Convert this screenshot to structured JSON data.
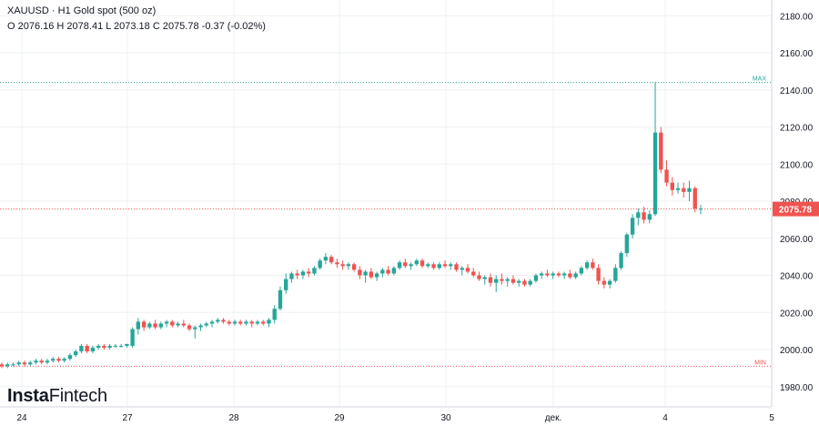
{
  "header": {
    "symbol": "XAUUSD",
    "sep": " · ",
    "timeframe": "H1",
    "description": "Gold spot (500 oz)",
    "ohlc": "O 2076.16 H 2078.41 L 2073.18 C 2075.78  -0.37 (-0.02%)"
  },
  "logo": {
    "part1": "Insta",
    "part2": "Fintech"
  },
  "colors": {
    "up": "#26a69a",
    "down": "#ef5350",
    "max_line": "#26a69a",
    "min_line": "#ef5350",
    "price_line": "#ef5350",
    "grid": "#eef0f3",
    "axis_text": "#131722"
  },
  "chart_data": {
    "type": "candlestick",
    "title": "XAUUSD · H1 Gold spot (500 oz)",
    "ylim": [
      1970,
      2190
    ],
    "y_ticks": [
      1980,
      2000,
      2020,
      2040,
      2060,
      2080,
      2100,
      2120,
      2140,
      2160,
      2180
    ],
    "y_tick_labels": [
      "1980.00",
      "2000.00",
      "2020.00",
      "2040.00",
      "2060.00",
      "2080.00",
      "2100.00",
      "2120.00",
      "2140.00",
      "2160.00",
      "2180.00"
    ],
    "x_ticks": [
      "24",
      "27",
      "28",
      "29",
      "30",
      "дек.",
      "4",
      "5"
    ],
    "grid": true,
    "max_label": "MAX",
    "min_label": "MIN",
    "max_value": 2144,
    "min_value": 1991,
    "last_price": 2075.78,
    "last_price_label": "2075.78",
    "candles": [
      [
        1992,
        1993,
        1990,
        1991
      ],
      [
        1991,
        1993,
        1990,
        1992
      ],
      [
        1992,
        1993,
        1991,
        1992
      ],
      [
        1992,
        1994,
        1991,
        1993
      ],
      [
        1993,
        1994,
        1991,
        1992
      ],
      [
        1992,
        1994,
        1991,
        1993
      ],
      [
        1993,
        1995,
        1992,
        1994
      ],
      [
        1994,
        1995,
        1992,
        1993
      ],
      [
        1993,
        1995,
        1992,
        1994
      ],
      [
        1994,
        1996,
        1993,
        1995
      ],
      [
        1995,
        1996,
        1993,
        1994
      ],
      [
        1994,
        1996,
        1993,
        1995
      ],
      [
        1995,
        1998,
        1994,
        1997
      ],
      [
        1997,
        2000,
        1996,
        1999
      ],
      [
        1999,
        2003,
        1998,
        2002
      ],
      [
        2002,
        2003,
        1998,
        1999
      ],
      [
        1999,
        2002,
        1998,
        2001
      ],
      [
        2001,
        2003,
        2000,
        2002
      ],
      [
        2002,
        2003,
        2000,
        2001
      ],
      [
        2001,
        2003,
        2000,
        2002
      ],
      [
        2002,
        2003,
        2001,
        2002
      ],
      [
        2002,
        2003,
        2001,
        2002
      ],
      [
        2002,
        2003,
        2001,
        2003
      ],
      [
        2002,
        2012,
        2001,
        2011
      ],
      [
        2011,
        2017,
        2008,
        2015
      ],
      [
        2015,
        2016,
        2010,
        2012
      ],
      [
        2012,
        2015,
        2011,
        2014
      ],
      [
        2014,
        2016,
        2011,
        2012
      ],
      [
        2012,
        2015,
        2011,
        2014
      ],
      [
        2014,
        2016,
        2012,
        2015
      ],
      [
        2015,
        2016,
        2012,
        2013
      ],
      [
        2013,
        2015,
        2012,
        2014
      ],
      [
        2014,
        2016,
        2012,
        2013
      ],
      [
        2013,
        2014,
        2010,
        2011
      ],
      [
        2011,
        2013,
        2006,
        2012
      ],
      [
        2012,
        2014,
        2010,
        2013
      ],
      [
        2013,
        2015,
        2012,
        2014
      ],
      [
        2014,
        2016,
        2012,
        2015
      ],
      [
        2015,
        2017,
        2014,
        2016
      ],
      [
        2016,
        2017,
        2014,
        2015
      ],
      [
        2015,
        2016,
        2013,
        2014
      ],
      [
        2014,
        2016,
        2013,
        2015
      ],
      [
        2015,
        2016,
        2013,
        2014
      ],
      [
        2014,
        2016,
        2013,
        2015
      ],
      [
        2015,
        2016,
        2012,
        2014
      ],
      [
        2014,
        2016,
        2013,
        2015
      ],
      [
        2015,
        2016,
        2013,
        2014
      ],
      [
        2014,
        2017,
        2012,
        2016
      ],
      [
        2016,
        2024,
        2014,
        2022
      ],
      [
        2022,
        2034,
        2021,
        2032
      ],
      [
        2032,
        2041,
        2030,
        2038
      ],
      [
        2038,
        2042,
        2036,
        2041
      ],
      [
        2041,
        2043,
        2038,
        2040
      ],
      [
        2040,
        2043,
        2038,
        2042
      ],
      [
        2042,
        2044,
        2039,
        2041
      ],
      [
        2041,
        2045,
        2040,
        2044
      ],
      [
        2044,
        2049,
        2043,
        2048
      ],
      [
        2048,
        2052,
        2046,
        2050
      ],
      [
        2050,
        2051,
        2046,
        2047
      ],
      [
        2047,
        2049,
        2044,
        2046
      ],
      [
        2046,
        2048,
        2043,
        2045
      ],
      [
        2045,
        2047,
        2043,
        2046
      ],
      [
        2046,
        2047,
        2042,
        2043
      ],
      [
        2043,
        2045,
        2038,
        2040
      ],
      [
        2040,
        2043,
        2036,
        2042
      ],
      [
        2042,
        2044,
        2038,
        2039
      ],
      [
        2039,
        2042,
        2037,
        2041
      ],
      [
        2041,
        2044,
        2039,
        2043
      ],
      [
        2043,
        2045,
        2040,
        2041
      ],
      [
        2041,
        2045,
        2040,
        2044
      ],
      [
        2044,
        2048,
        2043,
        2047
      ],
      [
        2047,
        2049,
        2044,
        2045
      ],
      [
        2045,
        2047,
        2043,
        2046
      ],
      [
        2046,
        2049,
        2045,
        2048
      ],
      [
        2048,
        2049,
        2044,
        2045
      ],
      [
        2045,
        2047,
        2044,
        2046
      ],
      [
        2046,
        2047,
        2043,
        2044
      ],
      [
        2044,
        2047,
        2043,
        2046
      ],
      [
        2046,
        2048,
        2044,
        2045
      ],
      [
        2045,
        2047,
        2043,
        2046
      ],
      [
        2046,
        2047,
        2042,
        2043
      ],
      [
        2043,
        2045,
        2040,
        2044
      ],
      [
        2044,
        2046,
        2041,
        2042
      ],
      [
        2042,
        2044,
        2039,
        2040
      ],
      [
        2040,
        2042,
        2037,
        2038
      ],
      [
        2038,
        2040,
        2035,
        2039
      ],
      [
        2039,
        2041,
        2034,
        2036
      ],
      [
        2036,
        2040,
        2031,
        2038
      ],
      [
        2038,
        2041,
        2035,
        2037
      ],
      [
        2037,
        2039,
        2034,
        2038
      ],
      [
        2038,
        2040,
        2035,
        2036
      ],
      [
        2036,
        2038,
        2034,
        2037
      ],
      [
        2037,
        2038,
        2034,
        2035
      ],
      [
        2035,
        2038,
        2034,
        2037
      ],
      [
        2037,
        2041,
        2036,
        2040
      ],
      [
        2040,
        2042,
        2038,
        2041
      ],
      [
        2041,
        2043,
        2039,
        2040
      ],
      [
        2040,
        2042,
        2038,
        2041
      ],
      [
        2041,
        2042,
        2039,
        2040
      ],
      [
        2040,
        2042,
        2038,
        2041
      ],
      [
        2041,
        2043,
        2038,
        2039
      ],
      [
        2039,
        2042,
        2038,
        2041
      ],
      [
        2041,
        2045,
        2040,
        2044
      ],
      [
        2044,
        2048,
        2043,
        2047
      ],
      [
        2047,
        2049,
        2043,
        2044
      ],
      [
        2044,
        2046,
        2035,
        2037
      ],
      [
        2037,
        2039,
        2033,
        2035
      ],
      [
        2035,
        2038,
        2033,
        2037
      ],
      [
        2037,
        2046,
        2036,
        2044
      ],
      [
        2044,
        2053,
        2043,
        2052
      ],
      [
        2052,
        2063,
        2050,
        2062
      ],
      [
        2062,
        2073,
        2060,
        2071
      ],
      [
        2071,
        2076,
        2067,
        2074
      ],
      [
        2074,
        2077,
        2068,
        2070
      ],
      [
        2070,
        2075,
        2068,
        2073
      ],
      [
        2073,
        2144,
        2072,
        2117
      ],
      [
        2117,
        2120,
        2095,
        2097
      ],
      [
        2097,
        2102,
        2088,
        2090
      ],
      [
        2090,
        2093,
        2083,
        2086
      ],
      [
        2086,
        2090,
        2084,
        2087
      ],
      [
        2087,
        2090,
        2082,
        2085
      ],
      [
        2085,
        2091,
        2080,
        2087
      ],
      [
        2087,
        2088,
        2074,
        2076
      ],
      [
        2076,
        2078,
        2073,
        2076
      ]
    ]
  }
}
